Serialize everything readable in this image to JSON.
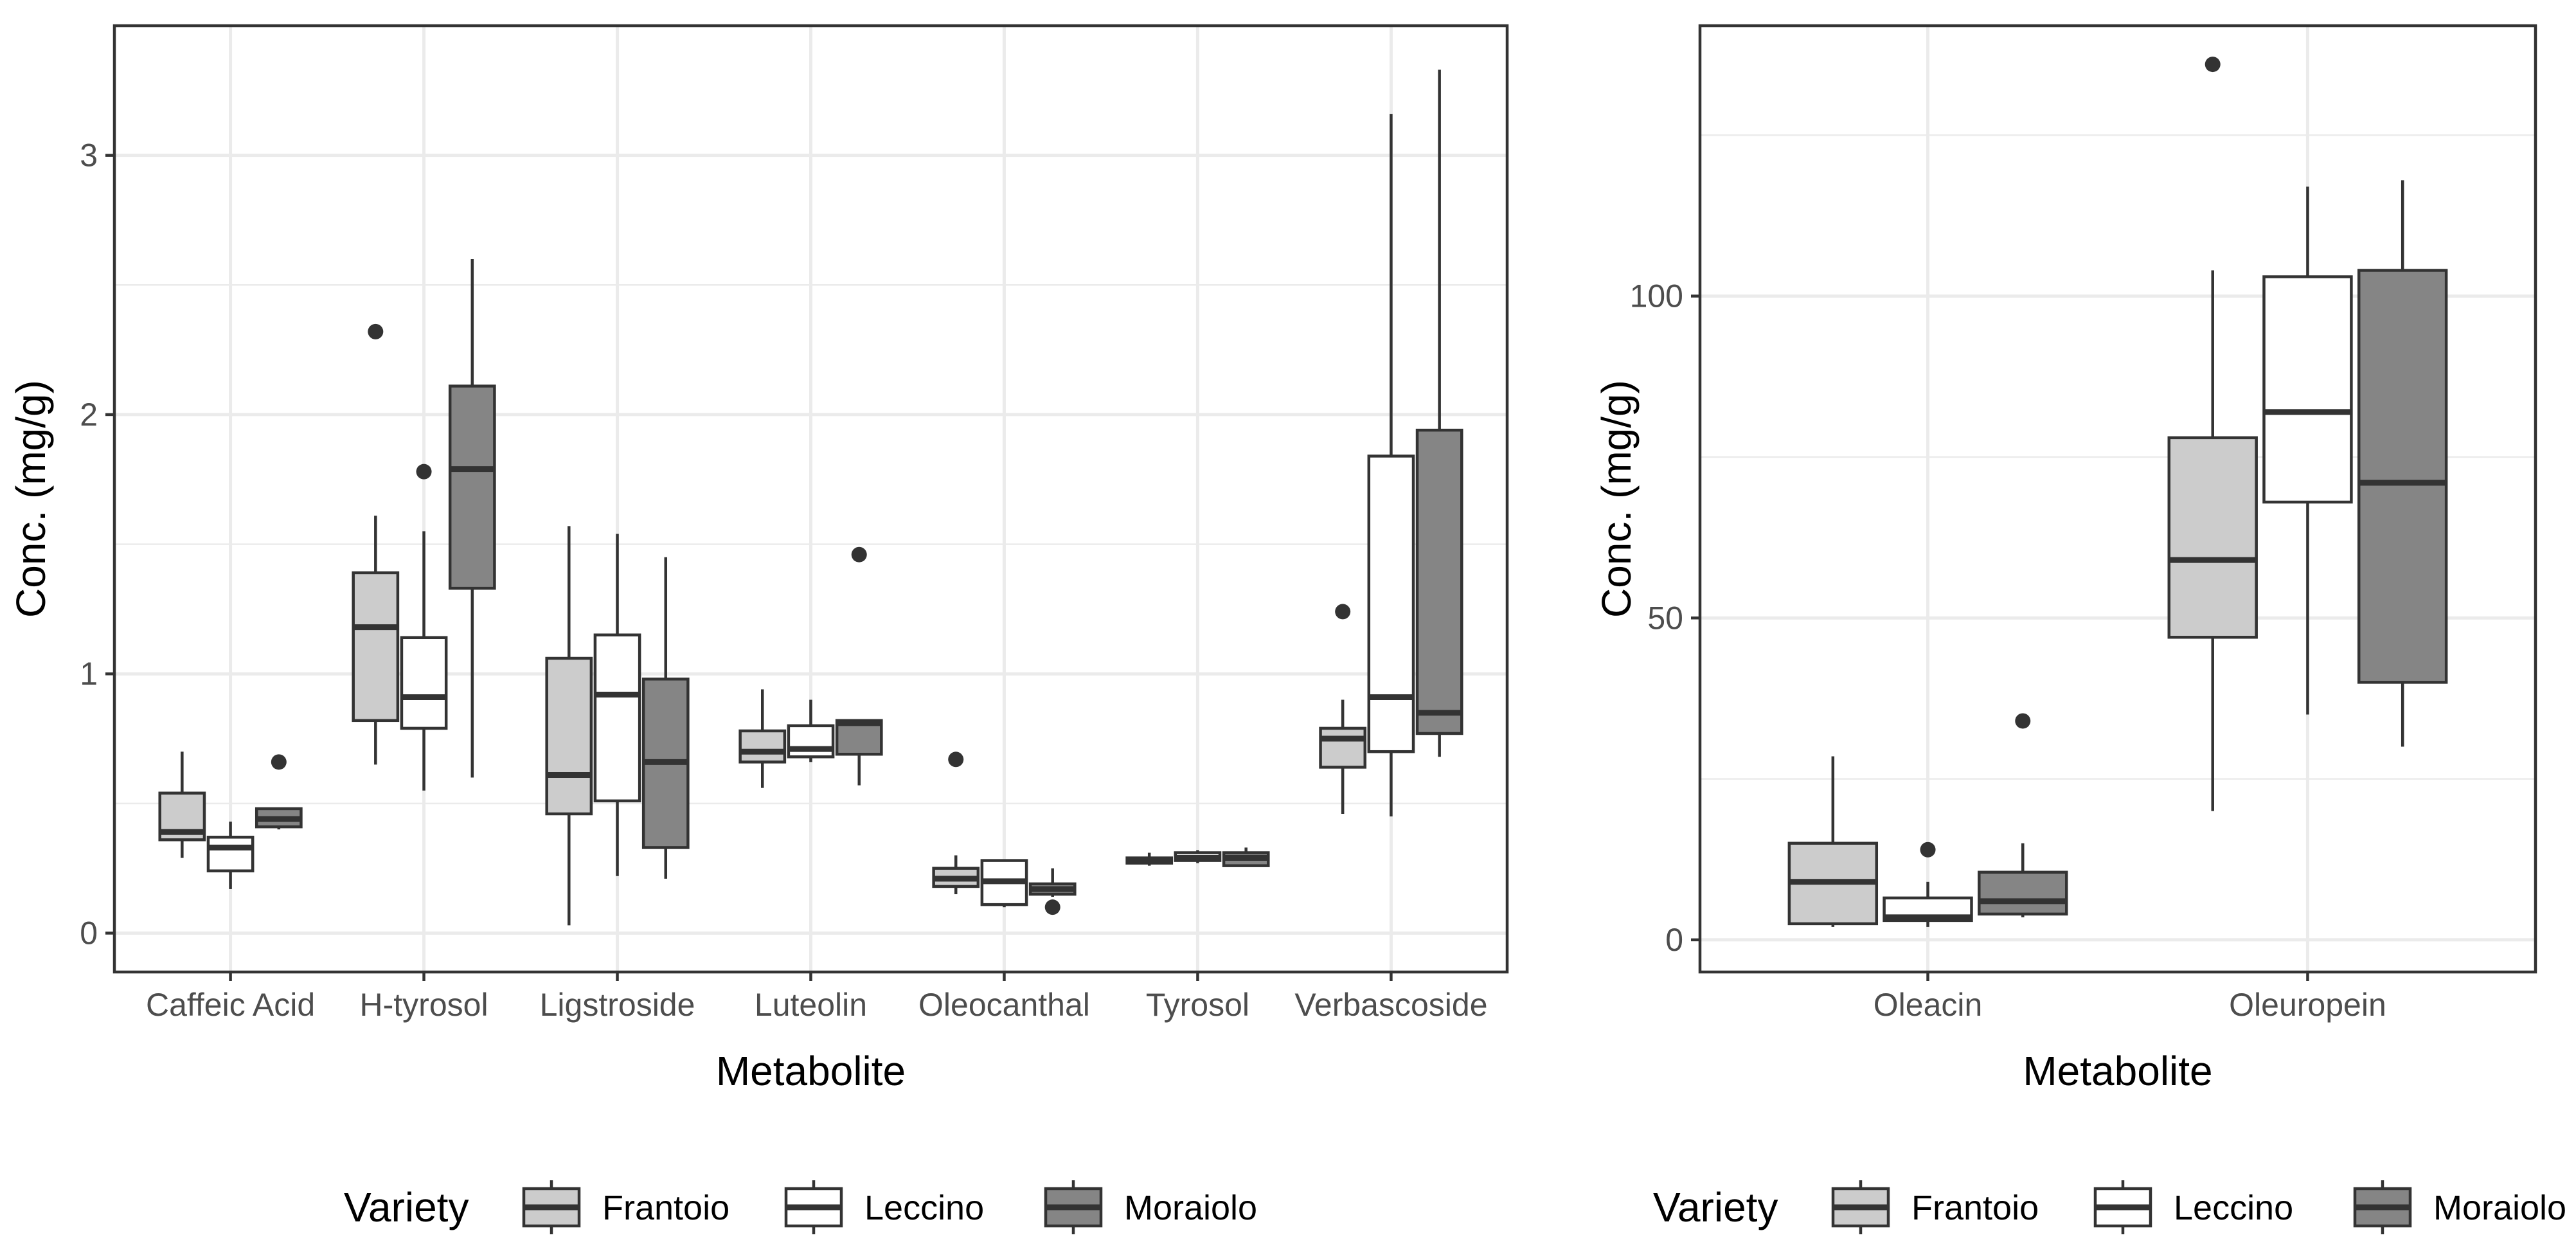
{
  "chart_data": [
    {
      "type": "boxplot",
      "xlabel": "Metabolite",
      "ylabel": "Conc. (mg/g)",
      "ylim": [
        -0.15,
        3.5
      ],
      "y_ticks": [
        0,
        1,
        2,
        3
      ],
      "y_tick_labels": [
        "0",
        "1",
        "2",
        "3"
      ],
      "categories": [
        "Caffeic Acid",
        "H-tyrosol",
        "Ligstroside",
        "Luteolin",
        "Oleocanthal",
        "Tyrosol",
        "Verbascoside"
      ],
      "legend_title": "Variety",
      "series": [
        {
          "name": "Frantoio",
          "color": "#cccccc",
          "boxes": [
            {
              "min": 0.29,
              "q1": 0.36,
              "median": 0.39,
              "q3": 0.54,
              "max": 0.7,
              "outliers": []
            },
            {
              "min": 0.65,
              "q1": 0.82,
              "median": 1.18,
              "q3": 1.39,
              "max": 1.61,
              "outliers": [
                2.32
              ]
            },
            {
              "min": 0.03,
              "q1": 0.46,
              "median": 0.61,
              "q3": 1.06,
              "max": 1.57,
              "outliers": []
            },
            {
              "min": 0.56,
              "q1": 0.66,
              "median": 0.7,
              "q3": 0.78,
              "max": 0.94,
              "outliers": []
            },
            {
              "min": 0.15,
              "q1": 0.18,
              "median": 0.21,
              "q3": 0.25,
              "max": 0.3,
              "outliers": [
                0.67
              ]
            },
            {
              "min": 0.26,
              "q1": 0.27,
              "median": 0.28,
              "q3": 0.29,
              "max": 0.31,
              "outliers": []
            },
            {
              "min": 0.46,
              "q1": 0.64,
              "median": 0.75,
              "q3": 0.79,
              "max": 0.9,
              "outliers": [
                1.24
              ]
            }
          ]
        },
        {
          "name": "Leccino",
          "color": "#ffffff",
          "boxes": [
            {
              "min": 0.17,
              "q1": 0.24,
              "median": 0.33,
              "q3": 0.37,
              "max": 0.43,
              "outliers": []
            },
            {
              "min": 0.55,
              "q1": 0.79,
              "median": 0.91,
              "q3": 1.14,
              "max": 1.55,
              "outliers": [
                1.78
              ]
            },
            {
              "min": 0.22,
              "q1": 0.51,
              "median": 0.92,
              "q3": 1.15,
              "max": 1.54,
              "outliers": []
            },
            {
              "min": 0.66,
              "q1": 0.68,
              "median": 0.71,
              "q3": 0.8,
              "max": 0.9,
              "outliers": []
            },
            {
              "min": 0.1,
              "q1": 0.11,
              "median": 0.2,
              "q3": 0.28,
              "max": 0.28,
              "outliers": []
            },
            {
              "min": 0.27,
              "q1": 0.28,
              "median": 0.29,
              "q3": 0.31,
              "max": 0.32,
              "outliers": []
            },
            {
              "min": 0.45,
              "q1": 0.7,
              "median": 0.91,
              "q3": 1.84,
              "max": 3.16,
              "outliers": []
            }
          ]
        },
        {
          "name": "Moraiolo",
          "color": "#858585",
          "boxes": [
            {
              "min": 0.4,
              "q1": 0.41,
              "median": 0.44,
              "q3": 0.48,
              "max": 0.48,
              "outliers": [
                0.66
              ]
            },
            {
              "min": 0.6,
              "q1": 1.33,
              "median": 1.79,
              "q3": 2.11,
              "max": 2.6,
              "outliers": []
            },
            {
              "min": 0.21,
              "q1": 0.33,
              "median": 0.66,
              "q3": 0.98,
              "max": 1.45,
              "outliers": []
            },
            {
              "min": 0.57,
              "q1": 0.69,
              "median": 0.81,
              "q3": 0.82,
              "max": 0.82,
              "outliers": [
                1.46
              ]
            },
            {
              "min": 0.14,
              "q1": 0.15,
              "median": 0.17,
              "q3": 0.19,
              "max": 0.25,
              "outliers": [
                0.1
              ]
            },
            {
              "min": 0.26,
              "q1": 0.26,
              "median": 0.29,
              "q3": 0.31,
              "max": 0.33,
              "outliers": []
            },
            {
              "min": 0.68,
              "q1": 0.77,
              "median": 0.85,
              "q3": 1.94,
              "max": 3.33,
              "outliers": []
            }
          ]
        }
      ]
    },
    {
      "type": "boxplot",
      "xlabel": "Metabolite",
      "ylabel": "Conc. (mg/g)",
      "ylim": [
        -5,
        142
      ],
      "y_ticks": [
        0,
        50,
        100
      ],
      "y_tick_labels": [
        "0",
        "50",
        "100"
      ],
      "categories": [
        "Oleacin",
        "Oleuropein"
      ],
      "legend_title": "Variety",
      "series": [
        {
          "name": "Frantoio",
          "color": "#cccccc",
          "boxes": [
            {
              "min": 2,
              "q1": 2.5,
              "median": 9,
              "q3": 15,
              "max": 28.5,
              "outliers": []
            },
            {
              "min": 20,
              "q1": 47,
              "median": 59,
              "q3": 78,
              "max": 104,
              "outliers": [
                136
              ]
            }
          ]
        },
        {
          "name": "Leccino",
          "color": "#ffffff",
          "boxes": [
            {
              "min": 2,
              "q1": 3,
              "median": 3.5,
              "q3": 6.5,
              "max": 9,
              "outliers": [
                14
              ]
            },
            {
              "min": 35,
              "q1": 68,
              "median": 82,
              "q3": 103,
              "max": 117,
              "outliers": []
            }
          ]
        },
        {
          "name": "Moraiolo",
          "color": "#858585",
          "boxes": [
            {
              "min": 3.5,
              "q1": 4,
              "median": 6,
              "q3": 10.5,
              "max": 15,
              "outliers": [
                34
              ]
            },
            {
              "min": 30,
              "q1": 40,
              "median": 71,
              "q3": 104,
              "max": 118,
              "outliers": []
            }
          ]
        }
      ]
    }
  ]
}
